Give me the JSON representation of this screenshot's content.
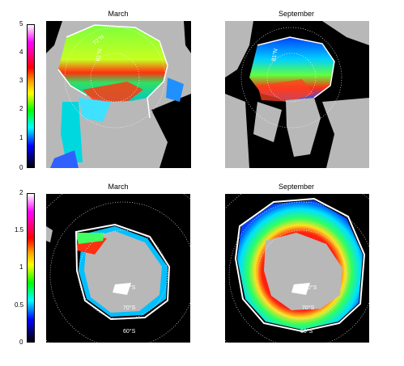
{
  "colorbars": [
    {
      "ticks": [
        "5",
        "4",
        "3",
        "2",
        "1",
        "0"
      ],
      "palette": [
        "#ffffff",
        "#ff00ff",
        "#ff0000",
        "#ffa500",
        "#ffff00",
        "#00ff00",
        "#00ffff",
        "#0000ff",
        "#000000"
      ]
    },
    {
      "ticks": [
        "2",
        "1.5",
        "1",
        "0.5",
        "0"
      ],
      "palette": [
        "#ffffff",
        "#ff00ff",
        "#ff0000",
        "#ffa500",
        "#ffff00",
        "#00ff00",
        "#00ffff",
        "#0000ff",
        "#000000"
      ]
    }
  ],
  "panels": [
    {
      "title": "March",
      "labels": [
        "72°N",
        "81°N"
      ]
    },
    {
      "title": "September",
      "labels": [
        "81°N"
      ]
    },
    {
      "title": "March",
      "labels": [
        "80°S",
        "70°S",
        "60°S"
      ]
    },
    {
      "title": "September",
      "labels": [
        "80°S",
        "70°S",
        "60°S"
      ]
    }
  ],
  "colors": {
    "land": "#b8b8b8",
    "ocean": "#000000",
    "ice_edge": "#ffffff"
  }
}
